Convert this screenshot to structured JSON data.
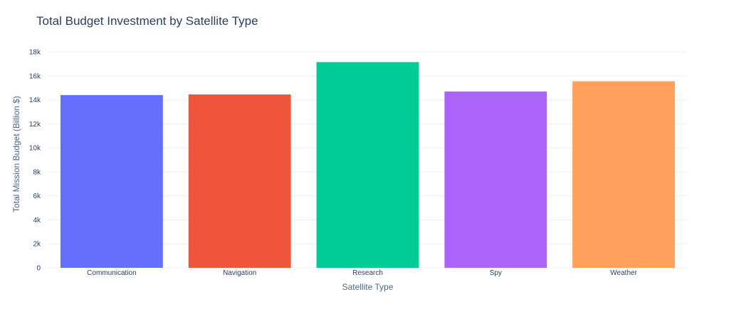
{
  "chart_data": {
    "type": "bar",
    "title": "Total Budget Investment by Satellite Type",
    "xlabel": "Satellite Type",
    "ylabel": "Total Mission Budget (Billion $)",
    "categories": [
      "Communication",
      "Navigation",
      "Research",
      "Spy",
      "Weather"
    ],
    "values": [
      14400,
      14450,
      17150,
      14700,
      15550
    ],
    "colors": [
      "#636efa",
      "#ef553b",
      "#00cc96",
      "#ab63fa",
      "#ffa15a"
    ],
    "ylim": [
      0,
      18950
    ],
    "yticks": [
      0,
      2000,
      4000,
      6000,
      8000,
      10000,
      12000,
      14000,
      16000,
      18000
    ],
    "ytick_labels": [
      "0",
      "2k",
      "4k",
      "6k",
      "8k",
      "10k",
      "12k",
      "14k",
      "16k",
      "18k"
    ],
    "grid": true,
    "legend": "none"
  }
}
